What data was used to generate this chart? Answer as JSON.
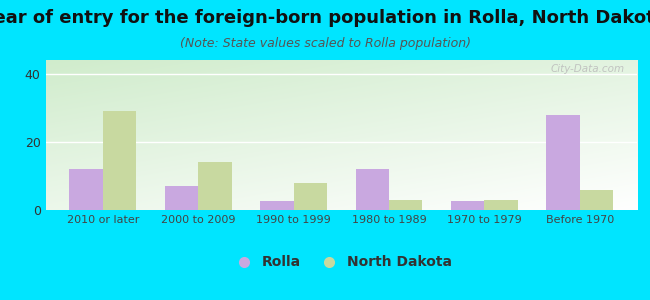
{
  "title": "Year of entry for the foreign-born population in Rolla, North Dakota",
  "subtitle": "(Note: State values scaled to Rolla population)",
  "categories": [
    "2010 or later",
    "2000 to 2009",
    "1990 to 1999",
    "1980 to 1989",
    "1970 to 1979",
    "Before 1970"
  ],
  "rolla_values": [
    12,
    7,
    2.5,
    12,
    2.5,
    28
  ],
  "nd_values": [
    29,
    14,
    8,
    3,
    3,
    6
  ],
  "rolla_color": "#c9a8e0",
  "nd_color": "#c8d9a0",
  "background_color": "#00e5ff",
  "ylim": [
    0,
    44
  ],
  "yticks": [
    0,
    20,
    40
  ],
  "bar_width": 0.35,
  "title_fontsize": 13,
  "subtitle_fontsize": 9,
  "legend_labels": [
    "Rolla",
    "North Dakota"
  ],
  "watermark": "City-Data.com"
}
